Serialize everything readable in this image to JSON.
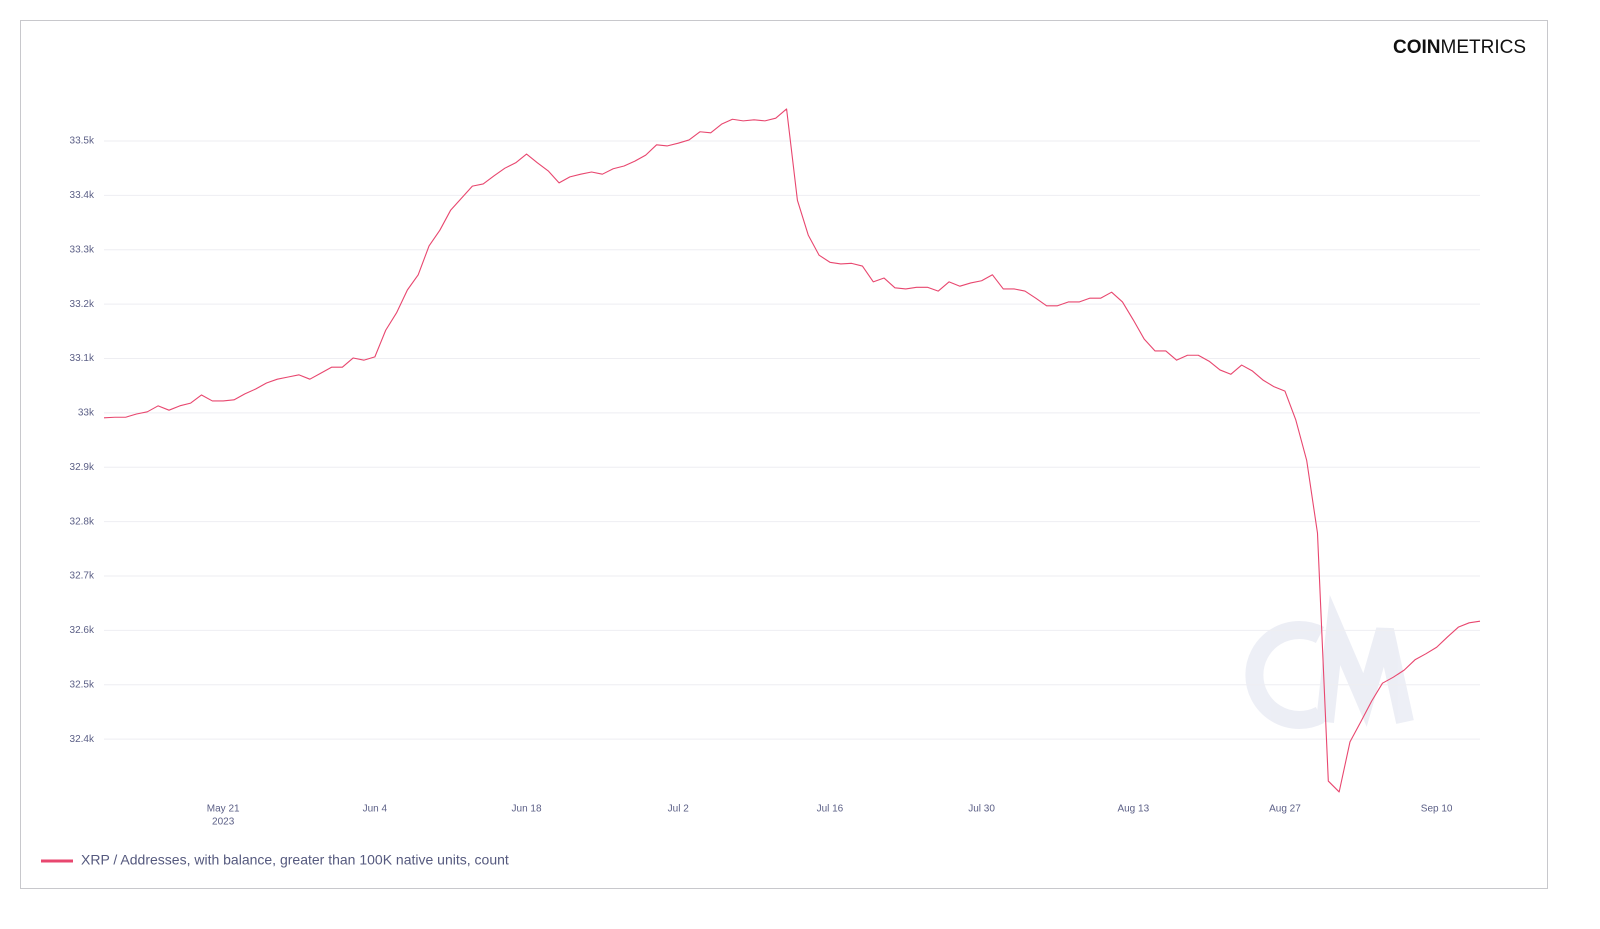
{
  "brand": {
    "bold": "COIN",
    "light": "METRICS"
  },
  "chart_data": {
    "type": "line",
    "x": [
      "2023-05-10",
      "2023-05-11",
      "2023-05-12",
      "2023-05-13",
      "2023-05-14",
      "2023-05-15",
      "2023-05-16",
      "2023-05-17",
      "2023-05-18",
      "2023-05-19",
      "2023-05-20",
      "2023-05-21",
      "2023-05-22",
      "2023-05-23",
      "2023-05-24",
      "2023-05-25",
      "2023-05-26",
      "2023-05-27",
      "2023-05-28",
      "2023-05-29",
      "2023-05-30",
      "2023-05-31",
      "2023-06-01",
      "2023-06-02",
      "2023-06-03",
      "2023-06-04",
      "2023-06-05",
      "2023-06-06",
      "2023-06-07",
      "2023-06-08",
      "2023-06-09",
      "2023-06-10",
      "2023-06-11",
      "2023-06-12",
      "2023-06-13",
      "2023-06-14",
      "2023-06-15",
      "2023-06-16",
      "2023-06-17",
      "2023-06-18",
      "2023-06-19",
      "2023-06-20",
      "2023-06-21",
      "2023-06-22",
      "2023-06-23",
      "2023-06-24",
      "2023-06-25",
      "2023-06-26",
      "2023-06-27",
      "2023-06-28",
      "2023-06-29",
      "2023-06-30",
      "2023-07-01",
      "2023-07-02",
      "2023-07-03",
      "2023-07-04",
      "2023-07-05",
      "2023-07-06",
      "2023-07-07",
      "2023-07-08",
      "2023-07-09",
      "2023-07-10",
      "2023-07-11",
      "2023-07-12",
      "2023-07-13",
      "2023-07-14",
      "2023-07-15",
      "2023-07-16",
      "2023-07-17",
      "2023-07-18",
      "2023-07-19",
      "2023-07-20",
      "2023-07-21",
      "2023-07-22",
      "2023-07-23",
      "2023-07-24",
      "2023-07-25",
      "2023-07-26",
      "2023-07-27",
      "2023-07-28",
      "2023-07-29",
      "2023-07-30",
      "2023-07-31",
      "2023-08-01",
      "2023-08-02",
      "2023-08-03",
      "2023-08-04",
      "2023-08-05",
      "2023-08-06",
      "2023-08-07",
      "2023-08-08",
      "2023-08-09",
      "2023-08-10",
      "2023-08-11",
      "2023-08-12",
      "2023-08-13",
      "2023-08-14",
      "2023-08-15",
      "2023-08-16",
      "2023-08-17",
      "2023-08-18",
      "2023-08-19",
      "2023-08-20",
      "2023-08-21",
      "2023-08-22",
      "2023-08-23",
      "2023-08-24",
      "2023-08-25",
      "2023-08-26",
      "2023-08-27",
      "2023-08-28",
      "2023-08-29",
      "2023-08-30",
      "2023-08-31",
      "2023-09-01",
      "2023-09-02",
      "2023-09-03",
      "2023-09-04",
      "2023-09-05",
      "2023-09-06",
      "2023-09-07",
      "2023-09-08",
      "2023-09-09",
      "2023-09-10",
      "2023-09-11",
      "2023-09-12",
      "2023-09-13",
      "2023-09-14"
    ],
    "series": [
      {
        "name": "XRP / Addresses, with balance, greater than 100K native units, count",
        "color": "#e8476f",
        "values": [
          32991,
          32992,
          32992,
          32998,
          33002,
          33013,
          33005,
          33013,
          33018,
          33033,
          33022,
          33022,
          33024,
          33035,
          33044,
          33055,
          33062,
          33066,
          33070,
          33062,
          33073,
          33084,
          33084,
          33101,
          33097,
          33103,
          33152,
          33184,
          33226,
          33254,
          33307,
          33336,
          33373,
          33395,
          33417,
          33421,
          33436,
          33450,
          33460,
          33476,
          33460,
          33445,
          33423,
          33434,
          33439,
          33443,
          33439,
          33449,
          33454,
          33463,
          33474,
          33493,
          33491,
          33496,
          33502,
          33517,
          33515,
          33531,
          33540,
          33537,
          33539,
          33537,
          33542,
          33559,
          33391,
          33327,
          33290,
          33277,
          33274,
          33275,
          33270,
          33241,
          33248,
          33230,
          33228,
          33231,
          33231,
          33224,
          33241,
          33233,
          33239,
          33243,
          33254,
          33228,
          33228,
          33224,
          33211,
          33197,
          33197,
          33204,
          33204,
          33211,
          33211,
          33222,
          33204,
          33171,
          33136,
          33114,
          33114,
          33097,
          33106,
          33106,
          33095,
          33079,
          33071,
          33088,
          33077,
          33060,
          33048,
          33040,
          32987,
          32913,
          32779,
          32323,
          32303,
          32395,
          32432,
          32470,
          32503,
          32514,
          32527,
          32546,
          32557,
          32569,
          32588,
          32606,
          32614,
          32617
        ]
      }
    ],
    "xlim": [
      "2023-05-10",
      "2023-09-14"
    ],
    "xticks": [
      {
        "value": "2023-05-21",
        "label": "May 21",
        "sublabel": "2023"
      },
      {
        "value": "2023-06-04",
        "label": "Jun 4"
      },
      {
        "value": "2023-06-18",
        "label": "Jun 18"
      },
      {
        "value": "2023-07-02",
        "label": "Jul 2"
      },
      {
        "value": "2023-07-16",
        "label": "Jul 16"
      },
      {
        "value": "2023-07-30",
        "label": "Jul 30"
      },
      {
        "value": "2023-08-13",
        "label": "Aug 13"
      },
      {
        "value": "2023-08-27",
        "label": "Aug 27"
      },
      {
        "value": "2023-09-10",
        "label": "Sep 10"
      }
    ],
    "ylim": [
      32290,
      33580
    ],
    "yticks": [
      {
        "value": 32400,
        "label": "32.4k"
      },
      {
        "value": 32500,
        "label": "32.5k"
      },
      {
        "value": 32600,
        "label": "32.6k"
      },
      {
        "value": 32700,
        "label": "32.7k"
      },
      {
        "value": 32800,
        "label": "32.8k"
      },
      {
        "value": 32900,
        "label": "32.9k"
      },
      {
        "value": 33000,
        "label": "33k"
      },
      {
        "value": 33100,
        "label": "33.1k"
      },
      {
        "value": 33200,
        "label": "33.2k"
      },
      {
        "value": 33300,
        "label": "33.3k"
      },
      {
        "value": 33400,
        "label": "33.4k"
      },
      {
        "value": 33500,
        "label": "33.5k"
      }
    ],
    "grid": true,
    "legend": "bottom-left"
  }
}
